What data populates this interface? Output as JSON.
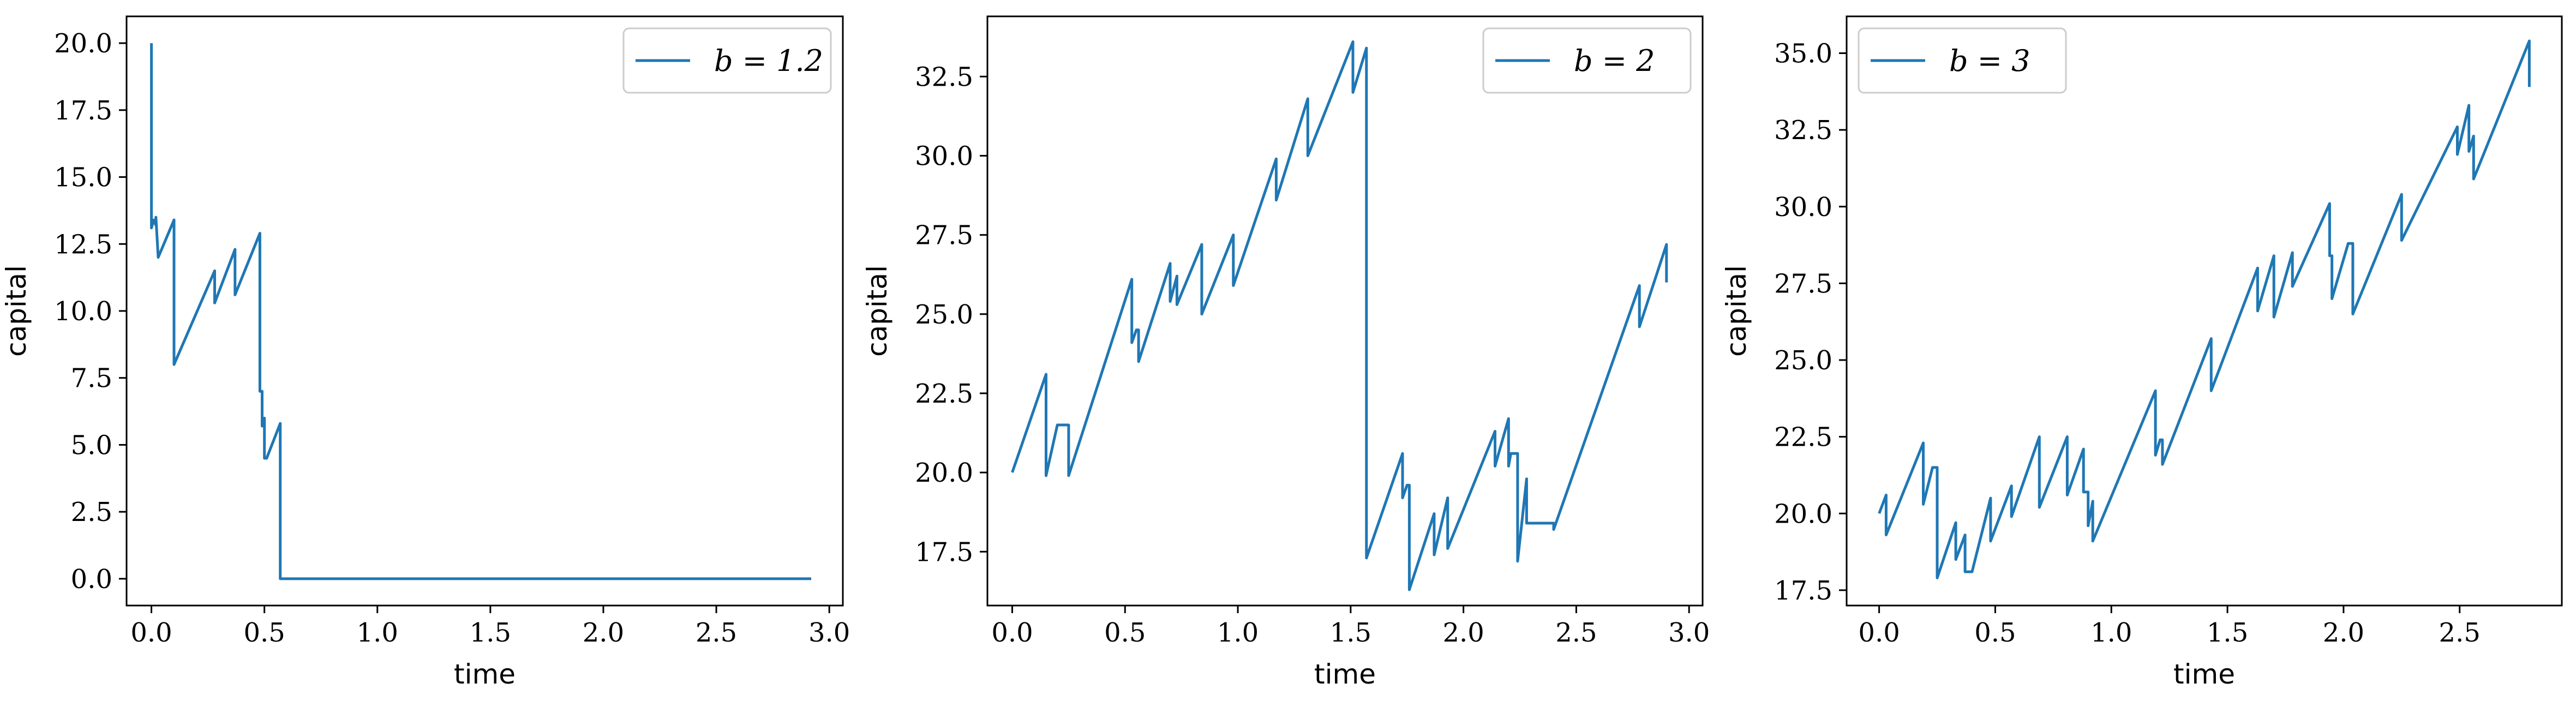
{
  "colors": {
    "series": "#1f77b4"
  },
  "chart_data": [
    {
      "type": "line",
      "xlabel": "time",
      "ylabel": "capital",
      "xlim": [
        -0.11,
        3.06
      ],
      "ylim": [
        -1.0,
        21.0
      ],
      "xticks": [
        0.0,
        0.5,
        1.0,
        1.5,
        2.0,
        2.5,
        3.0
      ],
      "xtick_labels": [
        "0.0",
        "0.5",
        "1.0",
        "1.5",
        "2.0",
        "2.5",
        "3.0"
      ],
      "yticks": [
        0.0,
        2.5,
        5.0,
        7.5,
        10.0,
        12.5,
        15.0,
        17.5,
        20.0
      ],
      "ytick_labels": [
        "0.0",
        "2.5",
        "5.0",
        "7.5",
        "10.0",
        "12.5",
        "15.0",
        "17.5",
        "20.0"
      ],
      "legend_position": "upper right",
      "legend_label": "b = 1.2",
      "series": [
        {
          "name": "b = 1.2",
          "x": [
            0.0,
            0.0,
            0.01,
            0.02,
            0.02,
            0.03,
            0.03,
            0.1,
            0.1,
            0.28,
            0.28,
            0.37,
            0.37,
            0.48,
            0.48,
            0.49,
            0.49,
            0.5,
            0.5,
            0.51,
            0.51,
            0.57,
            0.57,
            2.92
          ],
          "y": [
            20.0,
            13.1,
            13.4,
            13.2,
            13.5,
            12.0,
            12.0,
            13.4,
            8.0,
            11.5,
            10.3,
            12.3,
            10.6,
            12.9,
            7.0,
            7.0,
            5.7,
            6.0,
            4.5,
            4.5,
            4.5,
            5.8,
            0.0,
            0.0
          ]
        }
      ]
    },
    {
      "type": "line",
      "xlabel": "time",
      "ylabel": "capital",
      "xlim": [
        -0.11,
        3.06
      ],
      "ylim": [
        15.8,
        34.4
      ],
      "xticks": [
        0.0,
        0.5,
        1.0,
        1.5,
        2.0,
        2.5,
        3.0
      ],
      "xtick_labels": [
        "0.0",
        "0.5",
        "1.0",
        "1.5",
        "2.0",
        "2.5",
        "3.0"
      ],
      "yticks": [
        17.5,
        20.0,
        22.5,
        25.0,
        27.5,
        30.0,
        32.5
      ],
      "ytick_labels": [
        "17.5",
        "20.0",
        "22.5",
        "25.0",
        "27.5",
        "30.0",
        "32.5"
      ],
      "legend_position": "upper right",
      "legend_label": "b = 2",
      "series": [
        {
          "name": "b = 2",
          "x": [
            0.0,
            0.15,
            0.15,
            0.2,
            0.2,
            0.25,
            0.25,
            0.53,
            0.53,
            0.55,
            0.55,
            0.56,
            0.56,
            0.7,
            0.7,
            0.73,
            0.73,
            0.84,
            0.84,
            0.98,
            0.98,
            1.07,
            1.07,
            1.17,
            1.17,
            1.31,
            1.31,
            1.51,
            1.51,
            1.57,
            1.57,
            1.73,
            1.73,
            1.75,
            1.75,
            1.76,
            1.76,
            1.87,
            1.87,
            1.93,
            1.93,
            2.14,
            2.14,
            2.2,
            2.2,
            2.21,
            2.21,
            2.24,
            2.24,
            2.28,
            2.28,
            2.4,
            2.4,
            2.78,
            2.78,
            2.9,
            2.9
          ],
          "y": [
            20.0,
            23.1,
            19.9,
            21.5,
            21.5,
            21.5,
            19.9,
            26.1,
            24.1,
            24.5,
            24.5,
            24.5,
            23.5,
            26.6,
            25.4,
            26.2,
            25.3,
            27.2,
            25.0,
            27.5,
            25.9,
            27.8,
            27.8,
            29.9,
            28.6,
            31.8,
            30.0,
            33.6,
            32.0,
            33.4,
            17.3,
            20.6,
            19.2,
            19.6,
            19.6,
            19.6,
            16.3,
            18.7,
            17.4,
            19.2,
            17.6,
            21.3,
            20.2,
            21.7,
            20.2,
            20.6,
            20.6,
            20.6,
            17.2,
            19.8,
            18.4,
            18.4,
            18.2,
            25.9,
            24.6,
            27.2,
            26.0
          ]
        }
      ]
    },
    {
      "type": "line",
      "xlabel": "time",
      "ylabel": "capital",
      "xlim": [
        -0.14,
        2.94
      ],
      "ylim": [
        17.0,
        36.2
      ],
      "xticks": [
        0.0,
        0.5,
        1.0,
        1.5,
        2.0,
        2.5
      ],
      "xtick_labels": [
        "0.0",
        "0.5",
        "1.0",
        "1.5",
        "2.0",
        "2.5"
      ],
      "yticks": [
        17.5,
        20.0,
        22.5,
        25.0,
        27.5,
        30.0,
        32.5,
        35.0
      ],
      "ytick_labels": [
        "17.5",
        "20.0",
        "22.5",
        "25.0",
        "27.5",
        "30.0",
        "32.5",
        "35.0"
      ],
      "legend_position": "upper left",
      "legend_label": "b = 3",
      "series": [
        {
          "name": "b = 3",
          "x": [
            0.0,
            0.03,
            0.03,
            0.19,
            0.19,
            0.23,
            0.23,
            0.25,
            0.25,
            0.33,
            0.33,
            0.37,
            0.37,
            0.4,
            0.4,
            0.48,
            0.48,
            0.57,
            0.57,
            0.69,
            0.69,
            0.81,
            0.81,
            0.88,
            0.88,
            0.89,
            0.89,
            0.9,
            0.9,
            0.92,
            0.92,
            1.19,
            1.19,
            1.21,
            1.21,
            1.22,
            1.22,
            1.43,
            1.43,
            1.63,
            1.63,
            1.7,
            1.7,
            1.78,
            1.78,
            1.94,
            1.94,
            1.95,
            1.95,
            2.02,
            2.02,
            2.04,
            2.04,
            2.25,
            2.25,
            2.49,
            2.49,
            2.54,
            2.54,
            2.56,
            2.56,
            2.8,
            2.8
          ],
          "y": [
            20.0,
            20.6,
            19.3,
            22.3,
            20.3,
            21.5,
            21.5,
            21.5,
            17.9,
            19.7,
            18.5,
            19.3,
            18.1,
            18.1,
            18.1,
            20.5,
            19.1,
            20.9,
            19.9,
            22.5,
            20.2,
            22.5,
            20.6,
            22.1,
            20.7,
            20.7,
            20.7,
            20.7,
            19.6,
            20.4,
            19.1,
            24.0,
            21.9,
            22.4,
            22.4,
            22.4,
            21.6,
            25.7,
            24.0,
            28.0,
            26.6,
            28.4,
            26.4,
            28.5,
            27.4,
            30.1,
            28.4,
            28.4,
            27.0,
            28.8,
            28.8,
            28.8,
            26.5,
            30.4,
            28.9,
            32.6,
            31.7,
            33.3,
            31.8,
            32.3,
            30.9,
            35.4,
            33.9
          ]
        }
      ]
    }
  ]
}
